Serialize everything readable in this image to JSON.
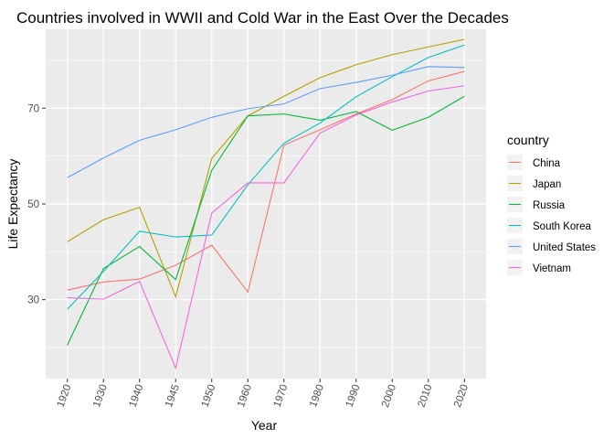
{
  "chart_data": {
    "type": "line",
    "title": "Countries involved in WWII and Cold War in the East Over the Decades",
    "xlabel": "Year",
    "ylabel": "Life Expectancy",
    "x": [
      1920,
      1930,
      1940,
      1945,
      1950,
      1960,
      1970,
      1980,
      1990,
      2000,
      2010,
      2020
    ],
    "x_tick_labels": [
      "1920",
      "1930",
      "1940",
      "1945",
      "1950",
      "1960",
      "1970",
      "1980",
      "1990",
      "2000",
      "2010",
      "2020"
    ],
    "y_ticks": [
      30,
      50,
      70
    ],
    "y_tick_labels": [
      "30",
      "50",
      "70"
    ],
    "ylim": [
      13.5,
      86.5
    ],
    "legend_title": "country",
    "legend_position": "right",
    "grid": true,
    "background": "#ebebeb",
    "series": [
      {
        "name": "China",
        "color": "#F8766D",
        "values": [
          32.0,
          33.7,
          34.3,
          37.2,
          41.4,
          31.6,
          62.3,
          65.5,
          68.8,
          71.8,
          75.7,
          77.7
        ]
      },
      {
        "name": "Japan",
        "color": "#B79F00",
        "values": [
          42.1,
          46.7,
          49.3,
          30.6,
          59.5,
          68.4,
          72.5,
          76.4,
          79.1,
          81.2,
          82.8,
          84.4
        ]
      },
      {
        "name": "Russia",
        "color": "#00BA38",
        "values": [
          20.5,
          36.5,
          41.1,
          34.2,
          57.0,
          68.4,
          68.8,
          67.5,
          69.3,
          65.4,
          68.1,
          72.5
        ]
      },
      {
        "name": "South Korea",
        "color": "#00BFC4",
        "values": [
          28.0,
          35.9,
          44.3,
          43.1,
          43.5,
          54.0,
          62.7,
          66.9,
          72.4,
          76.6,
          80.6,
          83.2
        ]
      },
      {
        "name": "United States",
        "color": "#619CFF",
        "values": [
          55.5,
          59.6,
          63.3,
          65.5,
          68.1,
          69.9,
          70.9,
          74.1,
          75.4,
          76.9,
          78.7,
          78.5
        ]
      },
      {
        "name": "Vietnam",
        "color": "#F564E3",
        "values": [
          30.4,
          30.1,
          33.8,
          15.7,
          48.1,
          54.4,
          54.4,
          64.8,
          68.6,
          71.3,
          73.6,
          74.7
        ]
      }
    ]
  }
}
